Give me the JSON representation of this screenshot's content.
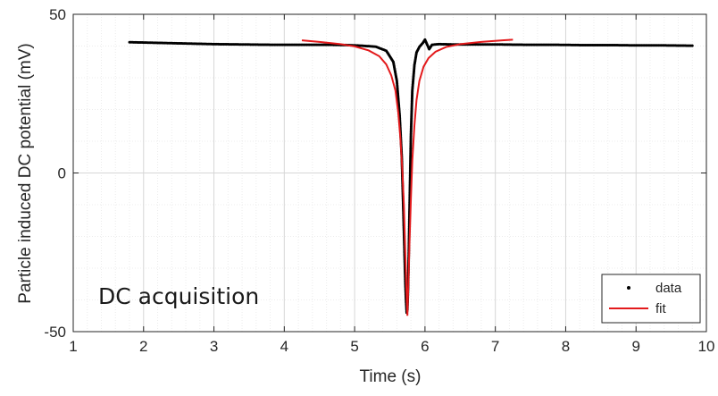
{
  "chart_data": {
    "type": "line",
    "title": "",
    "xlabel": "Time (s)",
    "ylabel": "Particle induced DC potential (mV)",
    "xlim": [
      1,
      10
    ],
    "ylim": [
      -50,
      50
    ],
    "xticks": [
      1,
      2,
      3,
      4,
      5,
      6,
      7,
      8,
      9,
      10
    ],
    "yticks": [
      -50,
      0,
      50
    ],
    "grid": true,
    "minor_grid": true,
    "annotation": "DC acquisition",
    "legend": {
      "position": "bottom-right",
      "entries": [
        "data",
        "fit"
      ]
    },
    "series": [
      {
        "name": "data",
        "style": "dots",
        "color": "#000000",
        "x": [
          1.8,
          2.2,
          2.6,
          3.0,
          3.4,
          3.8,
          4.2,
          4.6,
          4.9,
          5.1,
          5.3,
          5.45,
          5.55,
          5.6,
          5.64,
          5.67,
          5.69,
          5.71,
          5.72,
          5.73,
          5.74,
          5.75,
          5.76,
          5.77,
          5.78,
          5.79,
          5.8,
          5.82,
          5.85,
          5.88,
          5.92,
          5.97,
          6.0,
          6.03,
          6.06,
          6.1,
          6.2,
          6.4,
          6.7,
          7.0,
          7.4,
          7.8,
          8.2,
          8.6,
          9.0,
          9.4,
          9.8
        ],
        "y": [
          41.2,
          41.0,
          40.8,
          40.6,
          40.5,
          40.4,
          40.4,
          40.4,
          40.3,
          40.1,
          39.8,
          38.5,
          35.0,
          29.0,
          18.0,
          5.0,
          -10.0,
          -26.0,
          -34.0,
          -40.0,
          -44.0,
          -43.0,
          -36.0,
          -25.0,
          -12.0,
          0.0,
          12.0,
          26.0,
          34.0,
          38.0,
          39.7,
          41.0,
          42.0,
          40.5,
          39.0,
          40.4,
          40.6,
          40.5,
          40.5,
          40.5,
          40.4,
          40.4,
          40.3,
          40.3,
          40.2,
          40.2,
          40.1
        ]
      },
      {
        "name": "fit",
        "style": "line",
        "color": "#e31a1c",
        "x": [
          4.25,
          4.5,
          4.8,
          5.0,
          5.2,
          5.35,
          5.45,
          5.52,
          5.58,
          5.62,
          5.65,
          5.68,
          5.7,
          5.72,
          5.735,
          5.75,
          5.765,
          5.78,
          5.8,
          5.82,
          5.85,
          5.88,
          5.92,
          5.98,
          6.05,
          6.15,
          6.3,
          6.5,
          6.8,
          7.1,
          7.25
        ],
        "y": [
          41.8,
          41.3,
          40.6,
          39.9,
          38.6,
          36.8,
          34.2,
          30.8,
          26.0,
          19.0,
          11.0,
          0.0,
          -10.0,
          -25.0,
          -36.0,
          -45.0,
          -34.0,
          -22.0,
          -8.0,
          4.0,
          15.0,
          23.0,
          29.0,
          33.5,
          36.2,
          38.2,
          39.7,
          40.6,
          41.3,
          41.8,
          42.0
        ]
      }
    ]
  }
}
